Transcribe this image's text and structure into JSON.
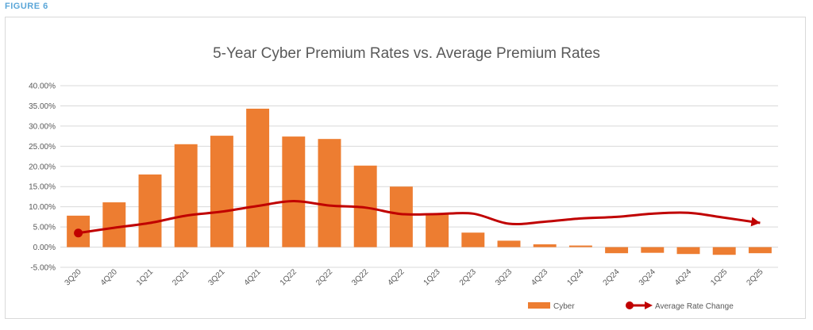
{
  "figure_label": "FIGURE 6",
  "chart_data": {
    "type": "bar",
    "title": "5-Year Cyber Premium Rates vs. Average Premium Rates",
    "xlabel": "",
    "ylabel": "",
    "categories": [
      "3Q20",
      "4Q20",
      "1Q21",
      "2Q21",
      "3Q21",
      "4Q21",
      "1Q22",
      "2Q22",
      "3Q22",
      "4Q22",
      "1Q23",
      "2Q23",
      "3Q23",
      "4Q23",
      "1Q24",
      "2Q24",
      "3Q24",
      "4Q24",
      "1Q25",
      "2Q25"
    ],
    "ylim": [
      -5,
      40
    ],
    "yticks": [
      "-5.00%",
      "0.00%",
      "5.00%",
      "10.00%",
      "15.00%",
      "20.00%",
      "25.00%",
      "30.00%",
      "35.00%",
      "40.00%"
    ],
    "series": [
      {
        "name": "Cyber",
        "type": "bar",
        "color": "#ed7d31",
        "values": [
          7.8,
          11.1,
          18.0,
          25.5,
          27.6,
          34.3,
          27.4,
          26.8,
          20.2,
          15.0,
          8.3,
          3.6,
          1.6,
          0.7,
          0.4,
          -1.5,
          -1.4,
          -1.7,
          -1.9,
          -1.5
        ]
      },
      {
        "name": "Average Rate Change",
        "type": "line",
        "color": "#c00000",
        "values": [
          3.5,
          4.8,
          6.0,
          7.8,
          8.8,
          10.2,
          11.4,
          10.3,
          9.8,
          8.2,
          8.2,
          8.3,
          5.8,
          6.3,
          7.1,
          7.5,
          8.3,
          8.5,
          7.3,
          6.0
        ]
      }
    ],
    "grid": true,
    "legend": "bottom-right"
  }
}
